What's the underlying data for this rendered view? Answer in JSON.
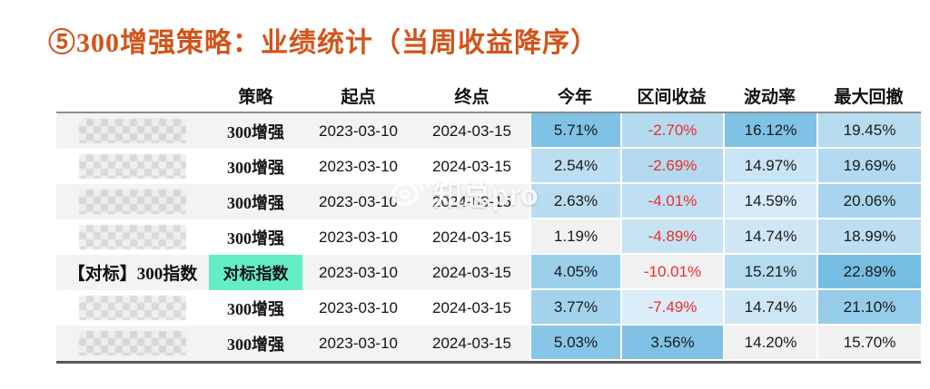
{
  "title": "⑤300增强策略：业绩统计（当周收益降序）",
  "watermark": {
    "text": "知总pro"
  },
  "colors": {
    "title": "#D35319",
    "negative_value": "#EE2C2C",
    "benchmark_highlight": "#63EEC3",
    "header_divider": "#8C8C8C",
    "table_bottom_border": "#595959",
    "row_stripe": "#F3F3F3"
  },
  "table": {
    "headers": [
      "",
      "策略",
      "起点",
      "终点",
      "今年",
      "区间收益",
      "波动率",
      "最大回撤"
    ],
    "rows": [
      {
        "name": "",
        "redacted": true,
        "strategy": "300增强",
        "strategy_highlight": false,
        "start": "2023-03-10",
        "end": "2024-03-15",
        "metrics": [
          {
            "value": "5.71%",
            "bg": "#7FC2E5"
          },
          {
            "value": "-2.70%",
            "bg": "#B4DAEF"
          },
          {
            "value": "16.12%",
            "bg": "#7FC2E5"
          },
          {
            "value": "19.45%",
            "bg": "#B7DCF0"
          }
        ]
      },
      {
        "name": "",
        "redacted": true,
        "strategy": "300增强",
        "strategy_highlight": false,
        "start": "2023-03-10",
        "end": "2024-03-15",
        "metrics": [
          {
            "value": "2.54%",
            "bg": "#BCDEF1"
          },
          {
            "value": "-2.69%",
            "bg": "#B2D9EF"
          },
          {
            "value": "14.97%",
            "bg": "#C9E4F4"
          },
          {
            "value": "19.69%",
            "bg": "#B2D9EF"
          }
        ]
      },
      {
        "name": "",
        "redacted": true,
        "strategy": "300增强",
        "strategy_highlight": false,
        "start": "2023-03-10",
        "end": "2024-03-15",
        "metrics": [
          {
            "value": "2.63%",
            "bg": "#B9DCF0"
          },
          {
            "value": "-4.01%",
            "bg": "#BEE0F2"
          },
          {
            "value": "14.59%",
            "bg": "#D6EAF7"
          },
          {
            "value": "20.06%",
            "bg": "#A8D5ED"
          }
        ]
      },
      {
        "name": "",
        "redacted": true,
        "strategy": "300增强",
        "strategy_highlight": false,
        "start": "2023-03-10",
        "end": "2024-03-15",
        "metrics": [
          {
            "value": "1.19%",
            "bg": "#F1F1F1"
          },
          {
            "value": "-4.89%",
            "bg": "#C6E3F4"
          },
          {
            "value": "14.74%",
            "bg": "#CFE7F5"
          },
          {
            "value": "18.99%",
            "bg": "#BDDEF1"
          }
        ]
      },
      {
        "name": "【对标】300指数",
        "redacted": false,
        "strategy": "对标指数",
        "strategy_highlight": true,
        "start": "2023-03-10",
        "end": "2024-03-15",
        "metrics": [
          {
            "value": "4.05%",
            "bg": "#9BCFEA"
          },
          {
            "value": "-10.01%",
            "bg": "#F1F1F1"
          },
          {
            "value": "15.21%",
            "bg": "#B5DBEF"
          },
          {
            "value": "22.89%",
            "bg": "#76BDE2"
          }
        ]
      },
      {
        "name": "",
        "redacted": true,
        "strategy": "300增强",
        "strategy_highlight": false,
        "start": "2023-03-10",
        "end": "2024-03-15",
        "metrics": [
          {
            "value": "3.77%",
            "bg": "#A3D3EC"
          },
          {
            "value": "-7.49%",
            "bg": "#DAEDF8"
          },
          {
            "value": "14.74%",
            "bg": "#CFE7F5"
          },
          {
            "value": "21.10%",
            "bg": "#95CCE9"
          }
        ]
      },
      {
        "name": "",
        "redacted": true,
        "strategy": "300增强",
        "strategy_highlight": false,
        "start": "2023-03-10",
        "end": "2024-03-15",
        "metrics": [
          {
            "value": "5.03%",
            "bg": "#88C6E7"
          },
          {
            "value": "3.56%",
            "bg": "#7FC2E5"
          },
          {
            "value": "14.20%",
            "bg": "#F1F1F1"
          },
          {
            "value": "15.70%",
            "bg": "#F1F1F1"
          }
        ]
      }
    ]
  }
}
